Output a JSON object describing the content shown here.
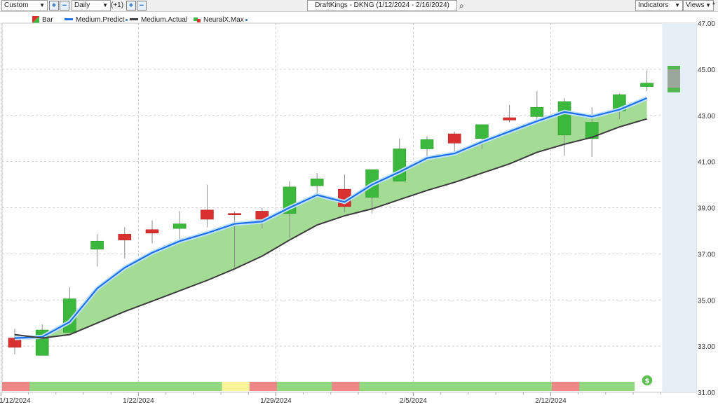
{
  "toolbar": {
    "period_select": "Custom",
    "interval_select": "Daily",
    "offset_label": "(+1)",
    "title": "DraftKings - DKNG (1/12/2024 - 2/16/2024)",
    "indicators_label": "Indicators",
    "views_label": "Views",
    "plus_icon": "plus-icon",
    "minus_icon": "minus-icon",
    "search_icon": "search-icon"
  },
  "legend": [
    {
      "label": "Bar",
      "icon": "bar-legend-icon",
      "color": "#3cb83c"
    },
    {
      "label": "Medium.Predict",
      "icon": "line-legend-icon",
      "color": "#1e6fe8"
    },
    {
      "label": "Medium.Actual",
      "icon": "line-legend-icon",
      "color": "#404040"
    },
    {
      "label": "NeuralX.Max",
      "icon": "neuralx-legend-icon",
      "color": "#3cb83c"
    }
  ],
  "colors": {
    "up": "#3cb83c",
    "down": "#d93030",
    "band": "#a4dc96",
    "predict": "#1e6fe8",
    "actual": "#3b3b3b",
    "strip_green": "#92d87e",
    "strip_red": "#ee8888",
    "strip_yellow": "#fbf59a",
    "forecast_zone": "#e6eef6"
  },
  "chart_data": {
    "type": "candlestick",
    "title": "DraftKings - DKNG (1/12/2024 - 2/16/2024)",
    "ylim": [
      31.0,
      47.0
    ],
    "y_ticks": [
      "31.00",
      "33.00",
      "35.00",
      "37.00",
      "39.00",
      "41.00",
      "43.00",
      "45.00",
      "47.00"
    ],
    "x_tick_labels": [
      {
        "label": "1/12/2024",
        "index": 0
      },
      {
        "label": "1/22/2024",
        "index": 5
      },
      {
        "label": "1/29/2024",
        "index": 10
      },
      {
        "label": "2/5/2024",
        "index": 15
      },
      {
        "label": "2/12/2024",
        "index": 20
      }
    ],
    "candles": [
      {
        "o": 33.35,
        "h": 33.75,
        "l": 32.65,
        "c": 32.95
      },
      {
        "o": 32.6,
        "h": 33.95,
        "l": 32.6,
        "c": 33.7
      },
      {
        "o": 33.6,
        "h": 35.55,
        "l": 33.6,
        "c": 35.05
      },
      {
        "o": 37.2,
        "h": 37.85,
        "l": 36.45,
        "c": 37.55
      },
      {
        "o": 37.85,
        "h": 38.15,
        "l": 36.8,
        "c": 37.6
      },
      {
        "o": 38.05,
        "h": 38.45,
        "l": 37.45,
        "c": 37.9
      },
      {
        "o": 38.1,
        "h": 38.85,
        "l": 37.6,
        "c": 38.3
      },
      {
        "o": 38.9,
        "h": 40.0,
        "l": 38.15,
        "c": 38.5
      },
      {
        "o": 38.75,
        "h": 38.85,
        "l": 36.4,
        "c": 38.7
      },
      {
        "o": 38.85,
        "h": 39.0,
        "l": 38.1,
        "c": 38.5
      },
      {
        "o": 38.75,
        "h": 40.15,
        "l": 37.7,
        "c": 39.9
      },
      {
        "o": 39.95,
        "h": 40.5,
        "l": 39.6,
        "c": 40.25
      },
      {
        "o": 39.8,
        "h": 40.45,
        "l": 38.8,
        "c": 39.05
      },
      {
        "o": 39.45,
        "h": 40.65,
        "l": 38.75,
        "c": 40.65
      },
      {
        "o": 40.15,
        "h": 42.0,
        "l": 40.15,
        "c": 41.55
      },
      {
        "o": 41.55,
        "h": 42.1,
        "l": 41.25,
        "c": 41.95
      },
      {
        "o": 42.2,
        "h": 42.3,
        "l": 41.45,
        "c": 41.8
      },
      {
        "o": 42.0,
        "h": 42.6,
        "l": 41.55,
        "c": 42.6
      },
      {
        "o": 42.9,
        "h": 43.45,
        "l": 42.7,
        "c": 42.8
      },
      {
        "o": 42.95,
        "h": 44.05,
        "l": 42.8,
        "c": 43.35
      },
      {
        "o": 42.15,
        "h": 43.75,
        "l": 41.25,
        "c": 43.6
      },
      {
        "o": 42.0,
        "h": 43.35,
        "l": 41.2,
        "c": 42.7
      },
      {
        "o": 43.2,
        "h": 43.95,
        "l": 42.85,
        "c": 43.9
      },
      {
        "o": 44.25,
        "h": 44.95,
        "l": 44.05,
        "c": 44.4
      }
    ],
    "series": [
      {
        "name": "Medium.Predict",
        "values": [
          33.35,
          33.4,
          34.05,
          35.5,
          36.4,
          37.05,
          37.55,
          37.9,
          38.3,
          38.4,
          39.0,
          39.55,
          39.25,
          40.0,
          40.55,
          41.15,
          41.35,
          41.85,
          42.3,
          42.75,
          43.15,
          42.95,
          43.25,
          43.75
        ]
      },
      {
        "name": "Medium.Actual",
        "values": [
          33.5,
          33.35,
          33.5,
          34.0,
          34.5,
          34.95,
          35.4,
          35.85,
          36.35,
          36.9,
          37.6,
          38.25,
          38.65,
          38.95,
          39.35,
          39.75,
          40.1,
          40.5,
          40.9,
          41.4,
          41.75,
          42.05,
          42.5,
          42.85
        ]
      }
    ],
    "forecast_bar": {
      "o": 44.0,
      "h": 45.15,
      "l": 44.0,
      "c": 45.15,
      "mid_low": 44.2,
      "mid_high": 45.0
    },
    "signal_strip": [
      "red",
      "green",
      "green",
      "green",
      "green",
      "green",
      "green",
      "green",
      "yellow",
      "red",
      "green",
      "green",
      "red",
      "green",
      "green",
      "green",
      "green",
      "green",
      "green",
      "green",
      "red",
      "green",
      "green"
    ],
    "signal_icon": "dollar-icon"
  }
}
